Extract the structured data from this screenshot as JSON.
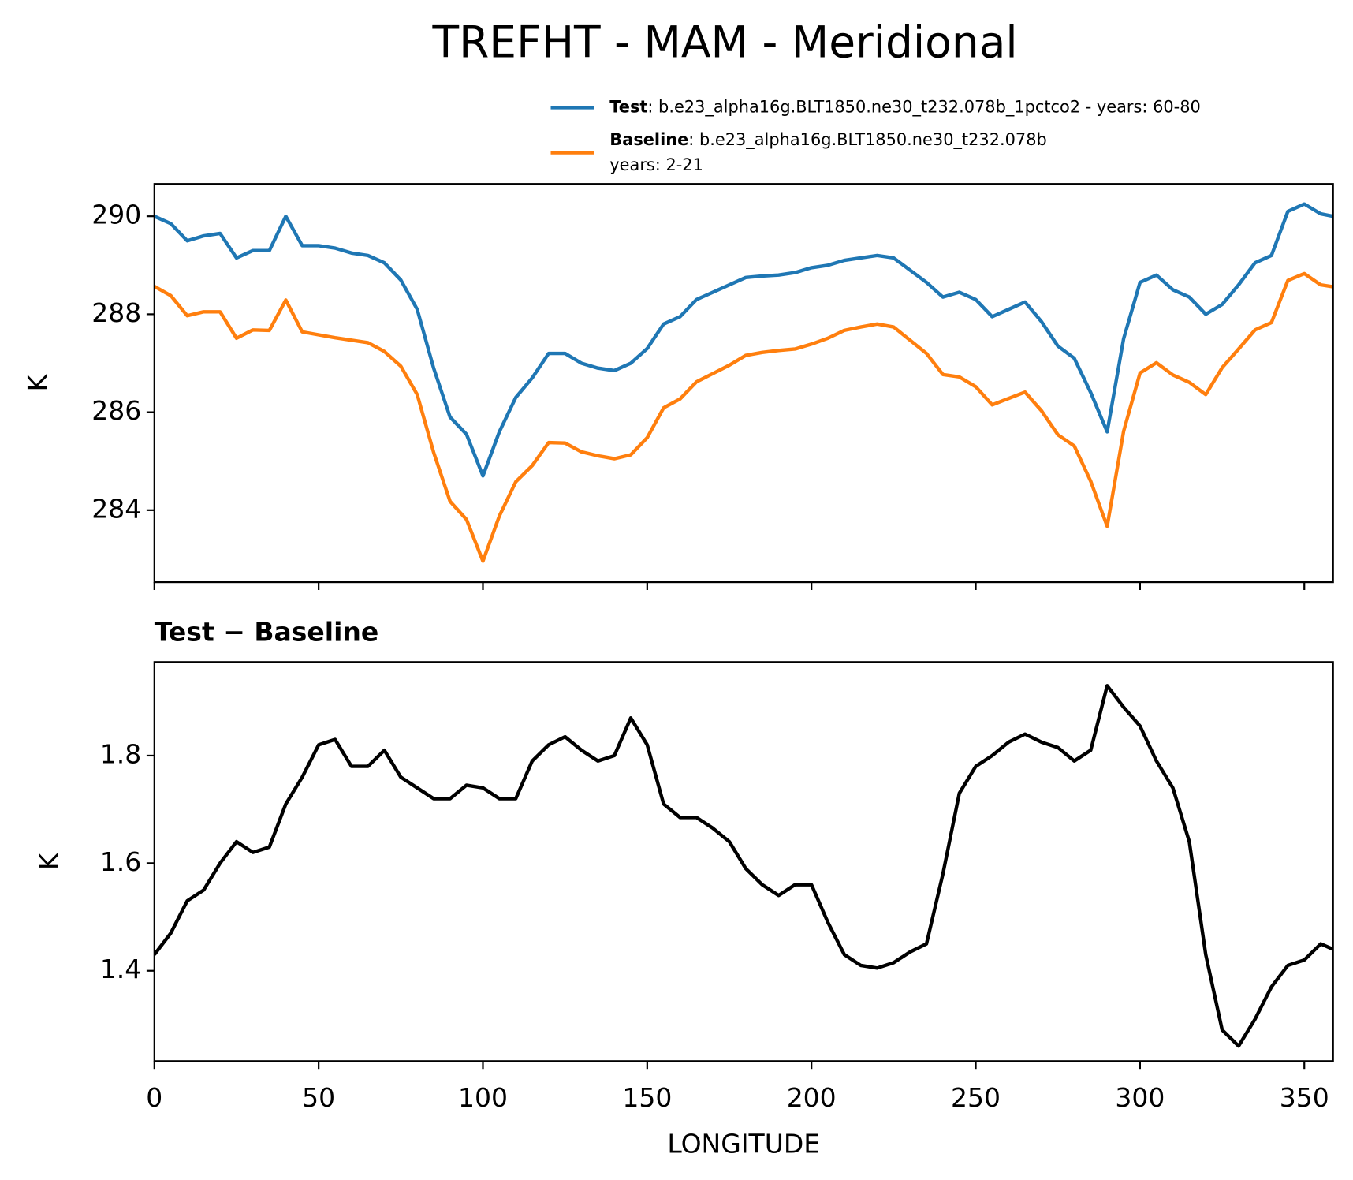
{
  "title": "TREFHT - MAM - Meridional",
  "chart_data": [
    {
      "type": "line",
      "ylabel": "K",
      "xlim": [
        0,
        358.75
      ],
      "ylim": [
        282.53,
        290.66
      ],
      "xticks": [
        0,
        50,
        100,
        150,
        200,
        250,
        300,
        350
      ],
      "yticks": [
        284,
        286,
        288,
        290
      ],
      "x": [
        0,
        5,
        10,
        15,
        20,
        25,
        30,
        35,
        40,
        45,
        50,
        55,
        60,
        65,
        70,
        75,
        80,
        85,
        90,
        95,
        100,
        105,
        110,
        115,
        120,
        125,
        130,
        135,
        140,
        145,
        150,
        155,
        160,
        165,
        170,
        175,
        180,
        185,
        190,
        195,
        200,
        205,
        210,
        215,
        220,
        225,
        230,
        235,
        240,
        245,
        250,
        255,
        260,
        265,
        270,
        275,
        280,
        285,
        290,
        295,
        300,
        305,
        310,
        315,
        320,
        325,
        330,
        335,
        340,
        345,
        350,
        355,
        358.75
      ],
      "series": [
        {
          "name": "Test",
          "description": [
            ": b.e23_alpha16g.BLT1850.ne30_t232.078b_1pctco2 - years: 60-80"
          ],
          "color": "#1f77b4",
          "values": [
            290.0,
            289.85,
            289.5,
            289.6,
            289.65,
            289.15,
            289.3,
            289.3,
            290.0,
            289.4,
            289.4,
            289.35,
            289.25,
            289.2,
            289.05,
            288.7,
            288.1,
            286.9,
            285.9,
            285.55,
            284.7,
            285.6,
            286.3,
            286.7,
            287.2,
            287.2,
            287.0,
            286.9,
            286.85,
            287.0,
            287.3,
            287.8,
            287.95,
            288.3,
            288.45,
            288.6,
            288.75,
            288.78,
            288.8,
            288.85,
            288.95,
            289.0,
            289.1,
            289.15,
            289.2,
            289.15,
            288.9,
            288.65,
            288.35,
            288.45,
            288.3,
            287.95,
            288.1,
            288.25,
            287.85,
            287.35,
            287.1,
            286.4,
            285.6,
            287.5,
            288.65,
            288.8,
            288.5,
            288.35,
            288.0,
            288.2,
            288.6,
            289.05,
            289.2,
            290.1,
            290.25,
            290.05,
            290.0
          ]
        },
        {
          "name": "Baseline",
          "description": [
            ": b.e23_alpha16g.BLT1850.ne30_t232.078b",
            "years: 2-21"
          ],
          "color": "#ff7f0e",
          "values": [
            288.57,
            288.38,
            287.97,
            288.05,
            288.05,
            287.51,
            287.68,
            287.67,
            288.29,
            287.64,
            287.58,
            287.52,
            287.47,
            287.42,
            287.24,
            286.94,
            286.36,
            285.18,
            284.18,
            283.81,
            282.96,
            283.88,
            284.58,
            284.91,
            285.38,
            285.37,
            285.19,
            285.11,
            285.05,
            285.13,
            285.48,
            286.09,
            286.27,
            286.62,
            286.79,
            286.96,
            287.16,
            287.22,
            287.26,
            287.29,
            287.39,
            287.51,
            287.67,
            287.74,
            287.8,
            287.74,
            287.47,
            287.2,
            286.77,
            286.72,
            286.52,
            286.15,
            286.28,
            286.41,
            286.03,
            285.54,
            285.31,
            284.59,
            283.67,
            285.61,
            286.8,
            287.01,
            286.76,
            286.61,
            286.36,
            286.91,
            287.29,
            287.68,
            287.83,
            288.69,
            288.83,
            288.6,
            288.56
          ]
        }
      ]
    },
    {
      "type": "line",
      "title": "Test − Baseline",
      "ylabel": "K",
      "xlabel": "LONGITUDE",
      "xlim": [
        0,
        358.75
      ],
      "ylim": [
        1.232,
        1.974
      ],
      "xticks": [
        0,
        50,
        100,
        150,
        200,
        250,
        300,
        350
      ],
      "yticks": [
        1.4,
        1.6,
        1.8
      ],
      "x": [
        0,
        5,
        10,
        15,
        20,
        25,
        30,
        35,
        40,
        45,
        50,
        55,
        60,
        65,
        70,
        75,
        80,
        85,
        90,
        95,
        100,
        105,
        110,
        115,
        120,
        125,
        130,
        135,
        140,
        145,
        150,
        155,
        160,
        165,
        170,
        175,
        180,
        185,
        190,
        195,
        200,
        205,
        210,
        215,
        220,
        225,
        230,
        235,
        240,
        245,
        250,
        255,
        260,
        265,
        270,
        275,
        280,
        285,
        290,
        295,
        300,
        305,
        310,
        315,
        320,
        325,
        330,
        335,
        340,
        345,
        350,
        355,
        358.75
      ],
      "series": [
        {
          "color": "#000000",
          "values": [
            1.43,
            1.47,
            1.53,
            1.55,
            1.6,
            1.64,
            1.62,
            1.63,
            1.71,
            1.76,
            1.82,
            1.83,
            1.78,
            1.78,
            1.81,
            1.76,
            1.74,
            1.72,
            1.72,
            1.745,
            1.74,
            1.72,
            1.72,
            1.79,
            1.82,
            1.835,
            1.81,
            1.79,
            1.8,
            1.87,
            1.82,
            1.71,
            1.685,
            1.685,
            1.665,
            1.64,
            1.59,
            1.56,
            1.54,
            1.56,
            1.56,
            1.49,
            1.43,
            1.41,
            1.405,
            1.415,
            1.435,
            1.45,
            1.58,
            1.73,
            1.78,
            1.8,
            1.825,
            1.84,
            1.825,
            1.815,
            1.79,
            1.81,
            1.93,
            1.89,
            1.855,
            1.79,
            1.74,
            1.64,
            1.43,
            1.29,
            1.26,
            1.31,
            1.37,
            1.41,
            1.42,
            1.45,
            1.44
          ]
        }
      ]
    }
  ]
}
